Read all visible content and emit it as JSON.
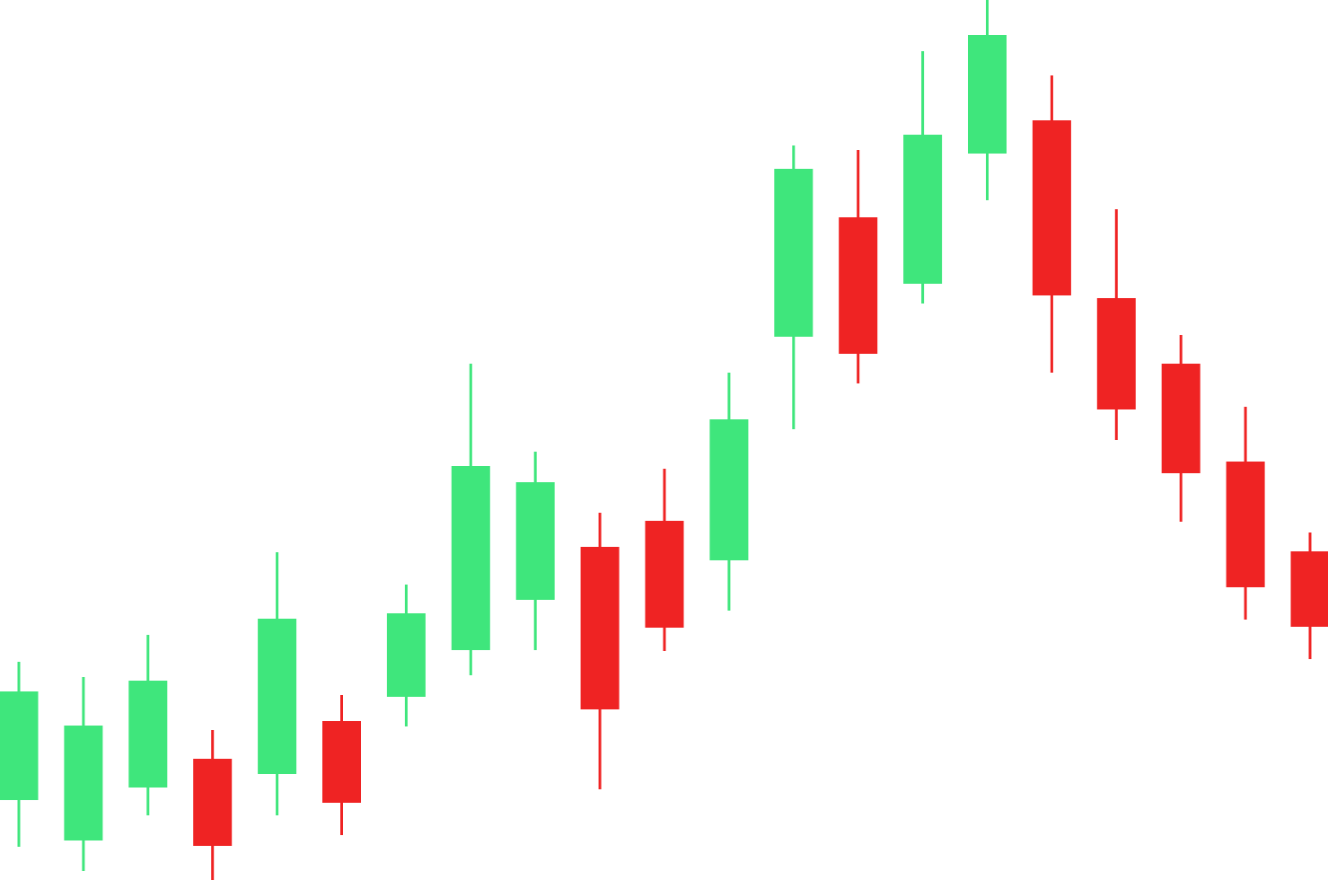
{
  "chart_data": {
    "type": "candlestick",
    "ylim": [
      0,
      980
    ],
    "grid": false,
    "legend": "none",
    "colors": {
      "up": "#3fe67c",
      "down": "#ef2323",
      "background": "#ffffff"
    },
    "candles": [
      {
        "open": 89,
        "close": 210,
        "high": 243,
        "low": 37,
        "direction": "up"
      },
      {
        "open": 44,
        "close": 172,
        "high": 226,
        "low": 10,
        "direction": "up"
      },
      {
        "open": 103,
        "close": 222,
        "high": 273,
        "low": 72,
        "direction": "up"
      },
      {
        "open": 135,
        "close": 38,
        "high": 167,
        "low": 0,
        "direction": "down"
      },
      {
        "open": 118,
        "close": 291,
        "high": 365,
        "low": 72,
        "direction": "up"
      },
      {
        "open": 177,
        "close": 86,
        "high": 206,
        "low": 50,
        "direction": "down"
      },
      {
        "open": 204,
        "close": 297,
        "high": 329,
        "low": 171,
        "direction": "up"
      },
      {
        "open": 256,
        "close": 461,
        "high": 575,
        "low": 228,
        "direction": "up"
      },
      {
        "open": 312,
        "close": 443,
        "high": 477,
        "low": 256,
        "direction": "up"
      },
      {
        "open": 371,
        "close": 190,
        "high": 409,
        "low": 101,
        "direction": "down"
      },
      {
        "open": 400,
        "close": 281,
        "high": 458,
        "low": 255,
        "direction": "down"
      },
      {
        "open": 356,
        "close": 513,
        "high": 565,
        "low": 300,
        "direction": "up"
      },
      {
        "open": 605,
        "close": 792,
        "high": 818,
        "low": 502,
        "direction": "up"
      },
      {
        "open": 738,
        "close": 586,
        "high": 813,
        "low": 553,
        "direction": "down"
      },
      {
        "open": 664,
        "close": 830,
        "high": 923,
        "low": 642,
        "direction": "up"
      },
      {
        "open": 809,
        "close": 941,
        "high": 980,
        "low": 757,
        "direction": "up"
      },
      {
        "open": 846,
        "close": 651,
        "high": 896,
        "low": 565,
        "direction": "down"
      },
      {
        "open": 648,
        "close": 524,
        "high": 747,
        "low": 490,
        "direction": "down"
      },
      {
        "open": 575,
        "close": 453,
        "high": 607,
        "low": 399,
        "direction": "down"
      },
      {
        "open": 466,
        "close": 326,
        "high": 527,
        "low": 290,
        "direction": "down"
      },
      {
        "open": 366,
        "close": 282,
        "high": 387,
        "low": 246,
        "direction": "down"
      }
    ]
  }
}
